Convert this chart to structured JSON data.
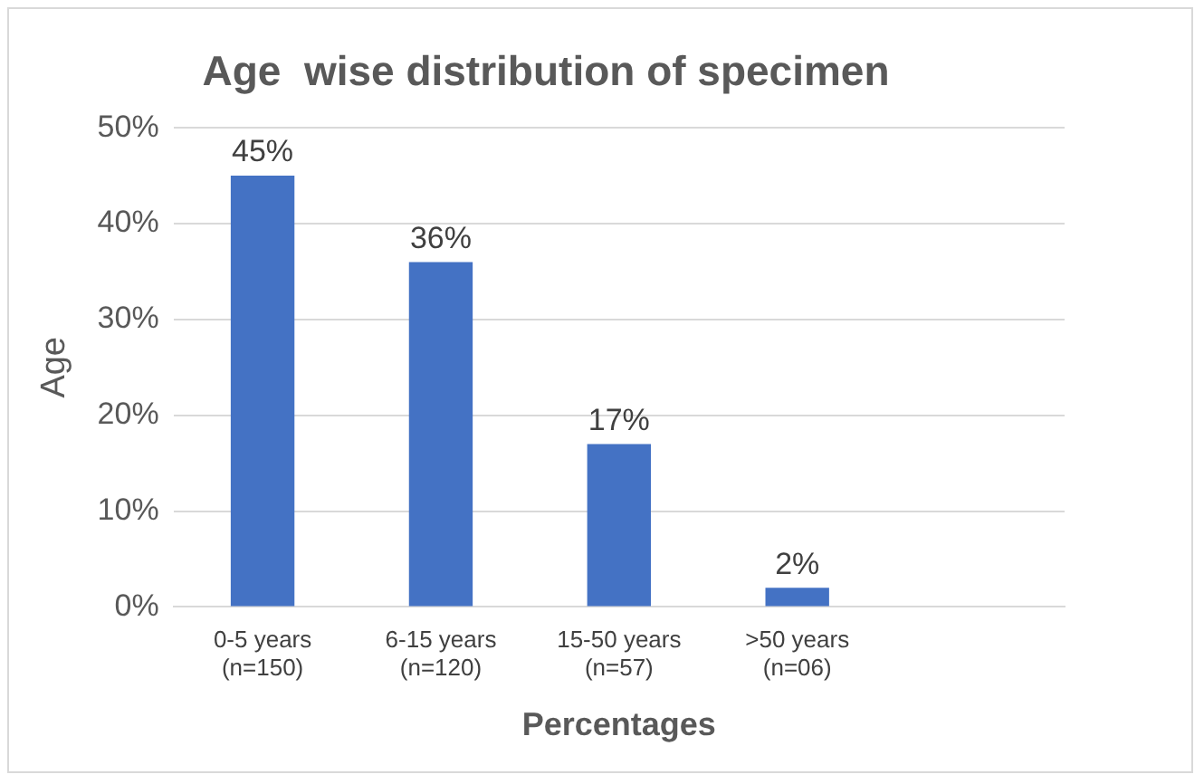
{
  "chart_data": {
    "type": "bar",
    "title": "Age  wise distribution of specimen",
    "xlabel": "Percentages",
    "ylabel": "Age",
    "categories": [
      "0-5 years\n(n=150)",
      "6-15 years\n(n=120)",
      "15-50 years\n(n=57)",
      ">50 years\n(n=06)",
      null
    ],
    "values": [
      45,
      36,
      17,
      2,
      null
    ],
    "value_labels": [
      "45%",
      "36%",
      "17%",
      "2%",
      null
    ],
    "color": "#4472c4",
    "ylim": [
      0,
      50
    ],
    "yticks": [
      {
        "value": 0,
        "label": "0%"
      },
      {
        "value": 10,
        "label": "10%"
      },
      {
        "value": 20,
        "label": "20%"
      },
      {
        "value": 30,
        "label": "30%"
      },
      {
        "value": 40,
        "label": "40%"
      },
      {
        "value": 50,
        "label": "50%"
      }
    ],
    "grid": "y",
    "legend": false
  }
}
